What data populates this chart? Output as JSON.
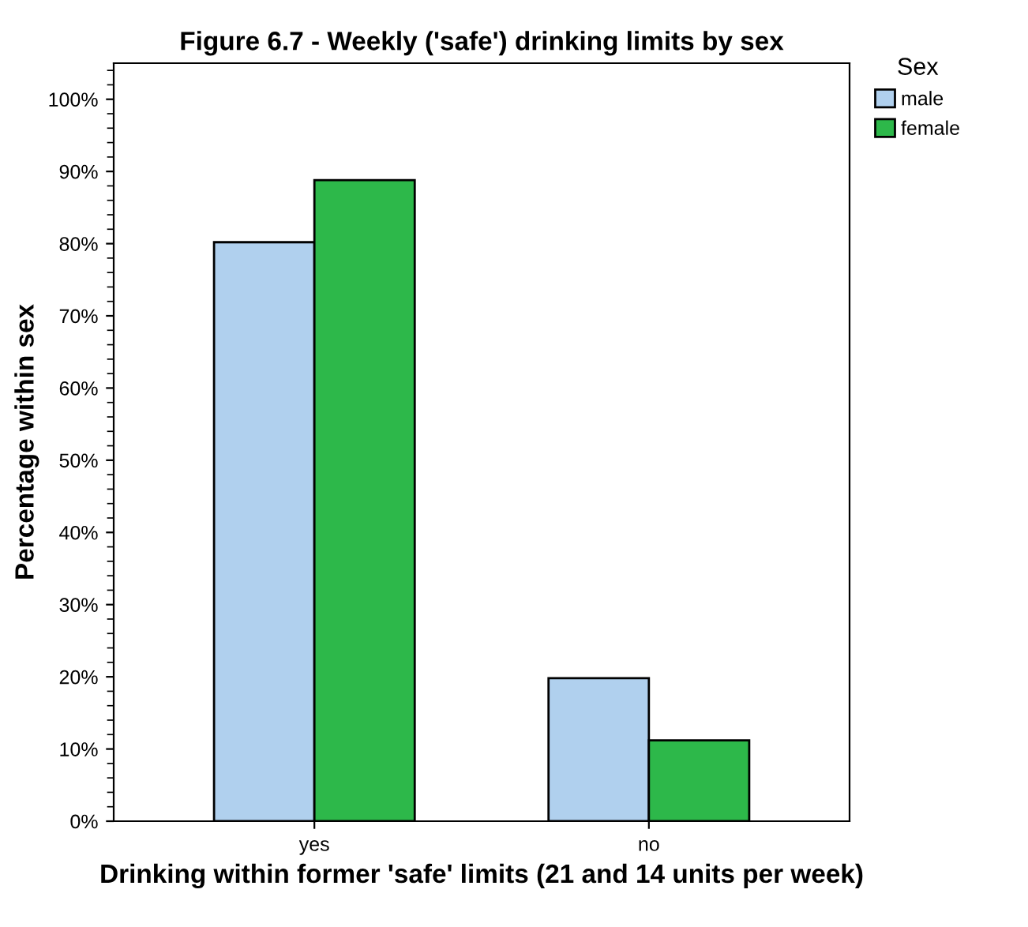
{
  "chart_data": {
    "type": "bar",
    "title": "Figure 6.7 - Weekly ('safe') drinking limits by sex",
    "xlabel": "Drinking within former 'safe' limits (21 and 14 units per week)",
    "ylabel": "Percentage within sex",
    "legend_title": "Sex",
    "categories": [
      "yes",
      "no"
    ],
    "series": [
      {
        "name": "male",
        "color": "#b0d0ee",
        "values": [
          80.2,
          19.8
        ]
      },
      {
        "name": "female",
        "color": "#2db84a",
        "values": [
          88.8,
          11.2
        ]
      }
    ],
    "ylim": [
      0,
      105
    ],
    "yticks": [
      {
        "value": 0,
        "label": "0%"
      },
      {
        "value": 10,
        "label": "10%"
      },
      {
        "value": 20,
        "label": "20%"
      },
      {
        "value": 30,
        "label": "30%"
      },
      {
        "value": 40,
        "label": "40%"
      },
      {
        "value": 50,
        "label": "50%"
      },
      {
        "value": 60,
        "label": "60%"
      },
      {
        "value": 70,
        "label": "70%"
      },
      {
        "value": 80,
        "label": "80%"
      },
      {
        "value": 90,
        "label": "90%"
      },
      {
        "value": 100,
        "label": "100%"
      }
    ],
    "grid": false,
    "legend": "top right"
  }
}
